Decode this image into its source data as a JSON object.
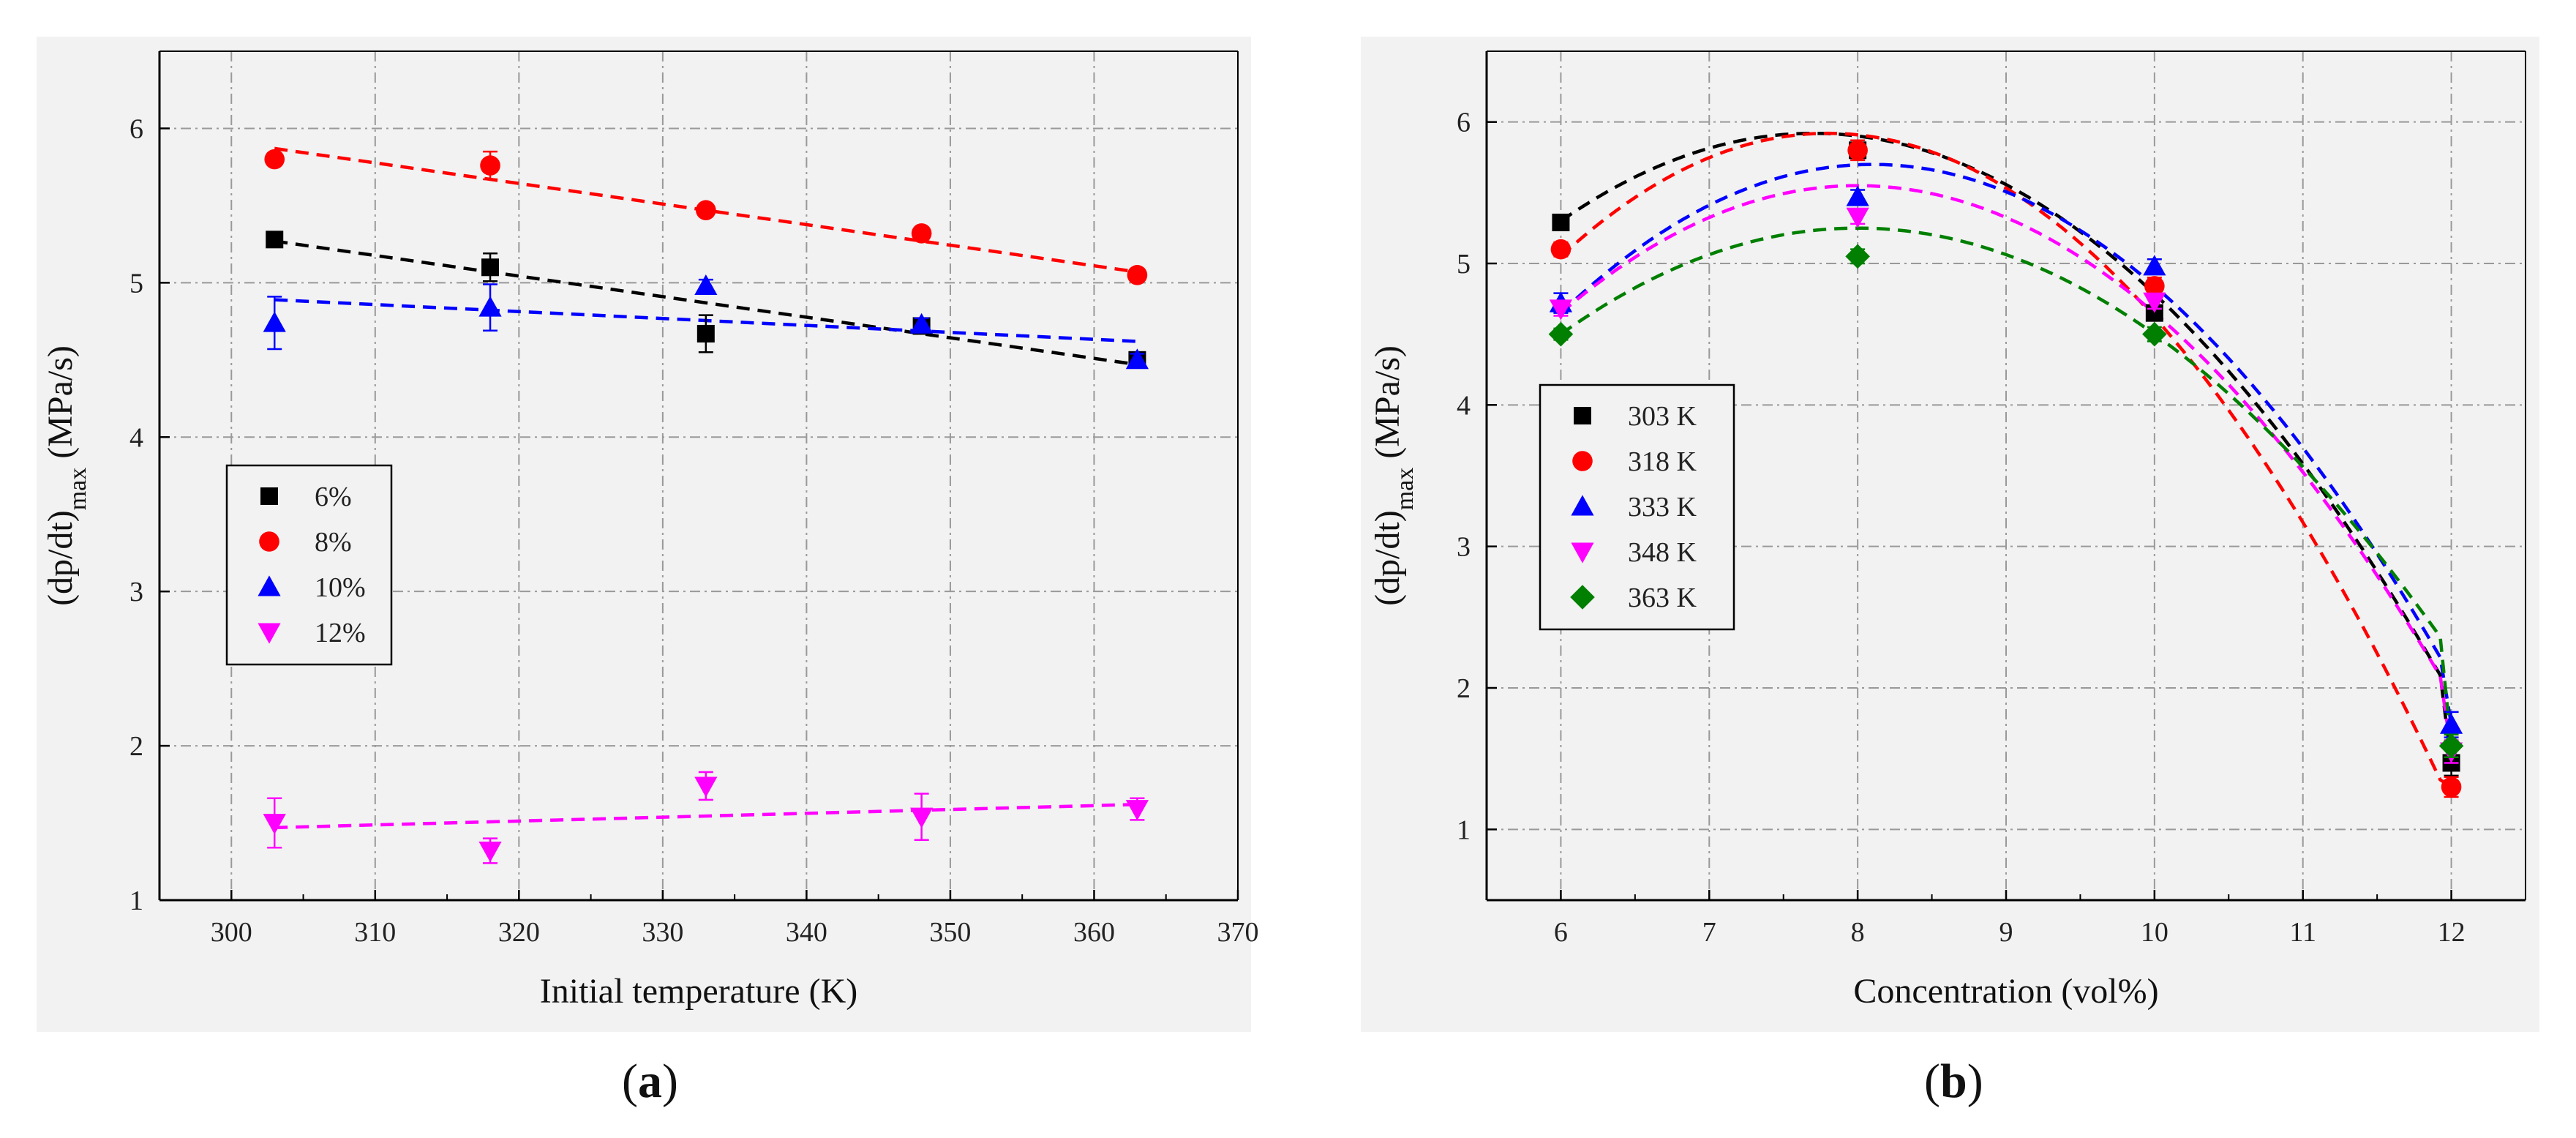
{
  "chart_data": [
    {
      "id": "a",
      "type": "scatter",
      "caption": "a",
      "xlabel": "Initial temperature (K)",
      "ylabel_base": "(dp/dt)",
      "ylabel_sub": "max",
      "ylabel_unit": " (MPa/s)",
      "xlim": [
        295,
        370
      ],
      "ylim": [
        1,
        6.5
      ],
      "xticks": [
        300,
        310,
        320,
        330,
        340,
        350,
        360,
        370
      ],
      "yticks": [
        1,
        2,
        3,
        4,
        5,
        6
      ],
      "grid": true,
      "legend_position": "middle-left",
      "series": [
        {
          "name": "6%",
          "color": "#000000",
          "marker": "square",
          "x": [
            303,
            318,
            333,
            348,
            363
          ],
          "y": [
            5.28,
            5.1,
            4.67,
            4.72,
            4.5
          ],
          "err": [
            0.04,
            0.09,
            0.12,
            0.05,
            0.04
          ],
          "fit": {
            "kind": "linear",
            "y0": 5.27,
            "y1": 4.47
          }
        },
        {
          "name": "8%",
          "color": "#ff0000",
          "marker": "circle",
          "x": [
            303,
            318,
            333,
            348,
            363
          ],
          "y": [
            5.8,
            5.76,
            5.47,
            5.32,
            5.05
          ],
          "err": [
            0.03,
            0.09,
            0.03,
            0.03,
            0.04
          ],
          "fit": {
            "kind": "linear",
            "y0": 5.87,
            "y1": 5.07
          }
        },
        {
          "name": "10%",
          "color": "#0000ff",
          "marker": "triangle-up",
          "x": [
            303,
            318,
            333,
            348,
            363
          ],
          "y": [
            4.74,
            4.84,
            4.98,
            4.73,
            4.5
          ],
          "err": [
            0.17,
            0.15,
            0.04,
            0.04,
            0.04
          ],
          "fit": {
            "kind": "linear",
            "y0": 4.89,
            "y1": 4.62
          }
        },
        {
          "name": "12%",
          "color": "#ff00ff",
          "marker": "triangle-down",
          "x": [
            303,
            318,
            333,
            348,
            363
          ],
          "y": [
            1.5,
            1.32,
            1.74,
            1.54,
            1.59
          ],
          "err": [
            0.16,
            0.08,
            0.09,
            0.15,
            0.07
          ],
          "fit": {
            "kind": "linear",
            "y0": 1.47,
            "y1": 1.62
          }
        }
      ]
    },
    {
      "id": "b",
      "type": "scatter",
      "caption": "b",
      "xlabel": "Concentration (vol%)",
      "ylabel_base": "(dp/dt)",
      "ylabel_sub": "max",
      "ylabel_unit": " (MPa/s)",
      "xlim": [
        5.5,
        12.5
      ],
      "ylim": [
        0.5,
        6.5
      ],
      "xticks": [
        6,
        7,
        8,
        9,
        10,
        11,
        12
      ],
      "yticks": [
        1,
        2,
        3,
        4,
        5,
        6
      ],
      "grid": true,
      "legend_position": "middle-left",
      "series": [
        {
          "name": "303 K",
          "color": "#000000",
          "marker": "square",
          "x": [
            6,
            8,
            10,
            12
          ],
          "y": [
            5.29,
            5.8,
            4.65,
            1.47
          ],
          "err": [
            0.04,
            0.05,
            0.05,
            0.09
          ],
          "fit": {
            "kind": "quadratic",
            "peak_x": 7.7,
            "peak_y": 5.92,
            "at_x0": 5.3
          }
        },
        {
          "name": "318 K",
          "color": "#ff0000",
          "marker": "circle",
          "x": [
            6,
            8,
            10,
            12
          ],
          "y": [
            5.1,
            5.8,
            4.84,
            1.3
          ],
          "err": [
            0.05,
            0.07,
            0.06,
            0.07
          ],
          "fit": {
            "kind": "quadratic",
            "peak_x": 7.8,
            "peak_y": 5.92,
            "at_x0": 5.05
          }
        },
        {
          "name": "333 K",
          "color": "#0000ff",
          "marker": "triangle-up",
          "x": [
            6,
            8,
            10,
            12
          ],
          "y": [
            4.72,
            5.47,
            4.98,
            1.74
          ],
          "err": [
            0.07,
            0.05,
            0.05,
            0.09
          ],
          "fit": {
            "kind": "quadratic",
            "peak_x": 8.1,
            "peak_y": 5.7,
            "at_x0": 4.65
          }
        },
        {
          "name": "348 K",
          "color": "#ff00ff",
          "marker": "triangle-down",
          "x": [
            6,
            8,
            10,
            12
          ],
          "y": [
            4.68,
            5.33,
            4.73,
            1.55
          ],
          "err": [
            0.05,
            0.05,
            0.05,
            0.08
          ],
          "fit": {
            "kind": "quadratic",
            "peak_x": 8.0,
            "peak_y": 5.55,
            "at_x0": 4.65
          }
        },
        {
          "name": "363 K",
          "color": "#007f00",
          "marker": "diamond",
          "x": [
            6,
            8,
            10,
            12
          ],
          "y": [
            4.5,
            5.05,
            4.5,
            1.59
          ],
          "err": [
            0.04,
            0.05,
            0.05,
            0.08
          ],
          "fit": {
            "kind": "quadratic",
            "peak_x": 8.0,
            "peak_y": 5.25,
            "at_x0": 4.5
          }
        }
      ]
    }
  ]
}
